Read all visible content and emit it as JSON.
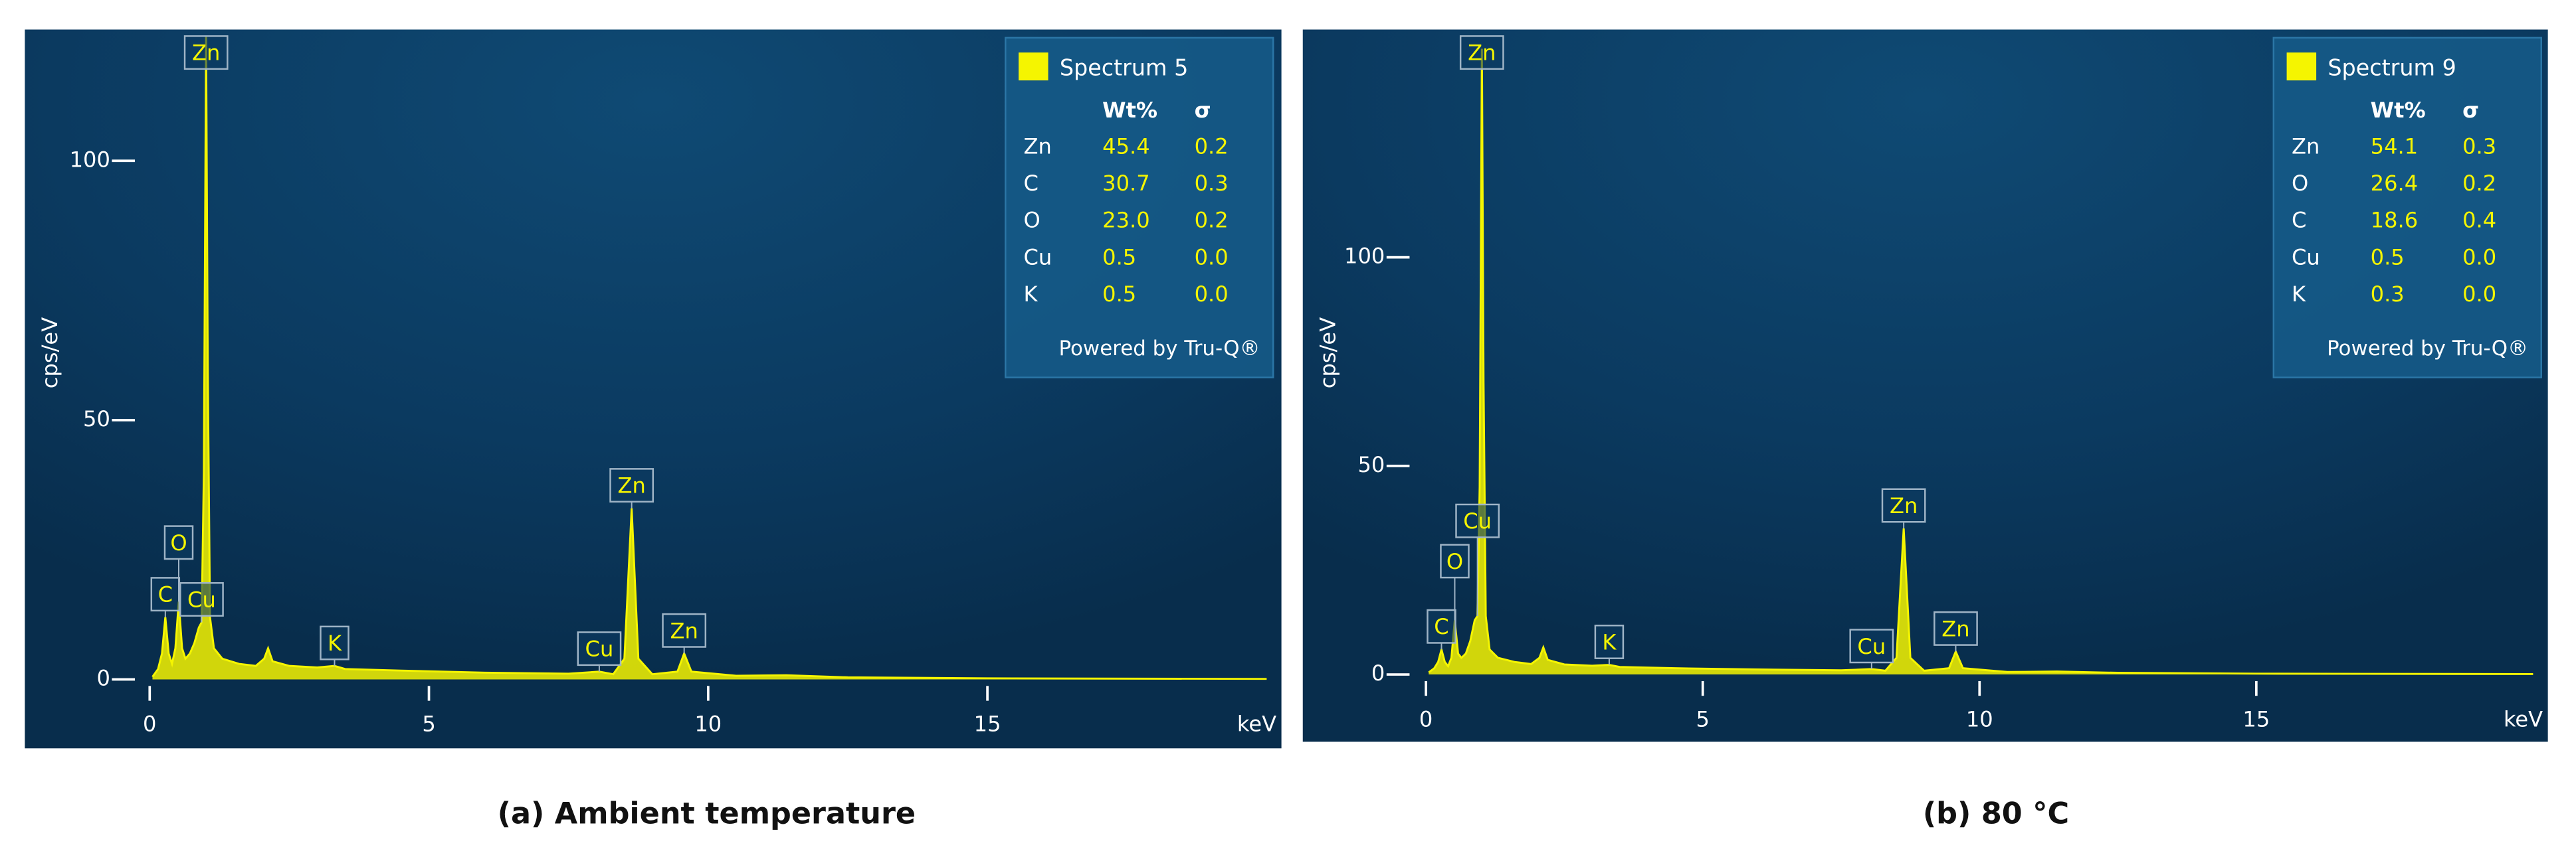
{
  "chart_data": [
    {
      "type": "area",
      "caption": "(a) Ambient temperature",
      "xlabel": "keV",
      "ylabel": "cps/eV",
      "xlim": [
        0,
        20
      ],
      "xticks": [
        0,
        5,
        10,
        15
      ],
      "ylim": [
        0,
        125
      ],
      "yticks": [
        0,
        50,
        100
      ],
      "x": [
        0.05,
        0.15,
        0.22,
        0.28,
        0.34,
        0.4,
        0.46,
        0.52,
        0.58,
        0.64,
        0.72,
        0.8,
        0.88,
        0.93,
        0.97,
        1.01,
        1.04,
        1.08,
        1.15,
        1.3,
        1.6,
        1.9,
        2.05,
        2.12,
        2.2,
        2.5,
        3.0,
        3.31,
        3.5,
        4.5,
        6,
        7.5,
        8.05,
        8.3,
        8.5,
        8.63,
        8.75,
        9.0,
        9.45,
        9.57,
        9.7,
        10.5,
        11.4,
        12.5,
        15,
        20
      ],
      "series": [
        {
          "name": "Spectrum 5",
          "color": "#f5f500",
          "values": [
            0.5,
            2,
            5,
            12,
            5,
            3,
            6,
            15,
            6,
            4,
            5,
            7,
            10,
            11,
            40,
            124,
            60,
            12,
            6,
            4,
            3,
            2.6,
            4,
            6,
            3.5,
            2.6,
            2.3,
            2.6,
            2,
            1.7,
            1.3,
            1.1,
            1.5,
            1,
            4,
            33,
            4,
            1,
            1.5,
            5,
            1.5,
            0.7,
            0.8,
            0.4,
            0.2,
            0.1
          ]
        }
      ],
      "annotations": [
        {
          "text": "C",
          "x": 0.28
        },
        {
          "text": "O",
          "x": 0.52
        },
        {
          "text": "Cu",
          "x": 0.93
        },
        {
          "text": "Zn",
          "x": 1.01
        },
        {
          "text": "K",
          "x": 3.31
        },
        {
          "text": "Cu",
          "x": 8.05
        },
        {
          "text": "Zn",
          "x": 8.63
        },
        {
          "text": "Zn",
          "x": 9.57
        }
      ],
      "composition": {
        "columns": [
          "Wt%",
          "σ"
        ],
        "rows": [
          [
            "Zn",
            "45.4",
            "0.2"
          ],
          [
            "C",
            "30.7",
            "0.3"
          ],
          [
            "O",
            "23.0",
            "0.2"
          ],
          [
            "Cu",
            "0.5",
            "0.0"
          ],
          [
            "K",
            "0.5",
            "0.0"
          ]
        ],
        "footer": "Powered by Tru-Q®"
      }
    },
    {
      "type": "area",
      "caption": "(b) 80 °C",
      "xlabel": "keV",
      "ylabel": "cps/eV",
      "xlim": [
        0,
        20
      ],
      "xticks": [
        0,
        5,
        10,
        15
      ],
      "ylim": [
        0,
        155
      ],
      "yticks": [
        0,
        50,
        100
      ],
      "x": [
        0.05,
        0.15,
        0.22,
        0.28,
        0.34,
        0.4,
        0.46,
        0.52,
        0.58,
        0.64,
        0.72,
        0.8,
        0.88,
        0.93,
        0.97,
        1.01,
        1.04,
        1.08,
        1.15,
        1.3,
        1.6,
        1.9,
        2.05,
        2.12,
        2.2,
        2.5,
        3.0,
        3.31,
        3.5,
        4.5,
        6,
        7.5,
        8.05,
        8.3,
        8.5,
        8.63,
        8.75,
        9.0,
        9.45,
        9.57,
        9.7,
        10.5,
        11.4,
        12.5,
        15,
        20
      ],
      "series": [
        {
          "name": "Spectrum 9",
          "color": "#f5f500",
          "values": [
            0.5,
            1.5,
            3,
            6,
            3,
            2,
            4,
            13,
            5,
            4,
            5,
            8,
            13,
            14,
            45,
            150,
            70,
            14,
            6,
            4,
            3,
            2.5,
            4,
            6.5,
            3.5,
            2.4,
            2.1,
            2.3,
            1.8,
            1.5,
            1.2,
            1.0,
            1.3,
            0.9,
            4,
            35,
            4,
            0.9,
            1.5,
            5.5,
            1.5,
            0.6,
            0.7,
            0.4,
            0.2,
            0.1
          ]
        }
      ],
      "annotations": [
        {
          "text": "C",
          "x": 0.28
        },
        {
          "text": "O",
          "x": 0.52
        },
        {
          "text": "Cu",
          "x": 0.93
        },
        {
          "text": "Zn",
          "x": 1.01
        },
        {
          "text": "K",
          "x": 3.31
        },
        {
          "text": "Cu",
          "x": 8.05
        },
        {
          "text": "Zn",
          "x": 8.63
        },
        {
          "text": "Zn",
          "x": 9.57
        }
      ],
      "composition": {
        "columns": [
          "Wt%",
          "σ"
        ],
        "rows": [
          [
            "Zn",
            "54.1",
            "0.3"
          ],
          [
            "O",
            "26.4",
            "0.2"
          ],
          [
            "C",
            "18.6",
            "0.4"
          ],
          [
            "Cu",
            "0.5",
            "0.0"
          ],
          [
            "K",
            "0.3",
            "0.0"
          ]
        ],
        "footer": "Powered by Tru-Q®"
      }
    }
  ]
}
